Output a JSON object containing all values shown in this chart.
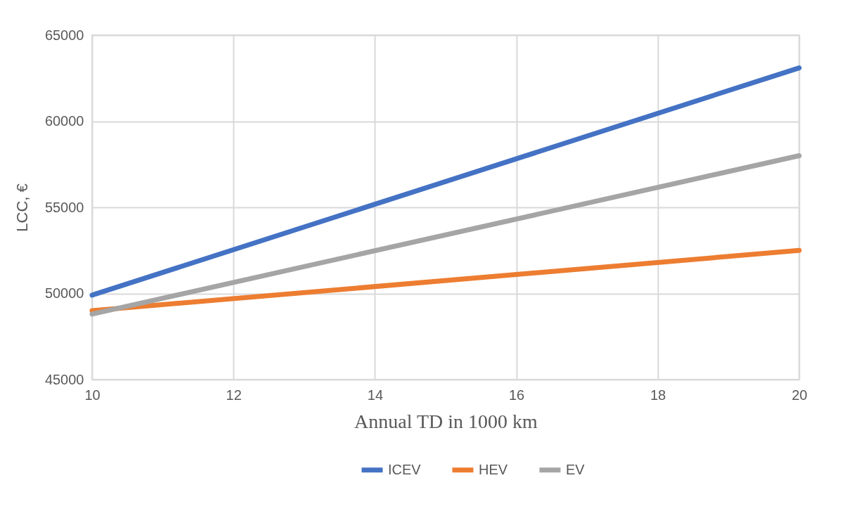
{
  "chart_data": {
    "type": "line",
    "xlabel": "Annual TD in 1000 km",
    "ylabel": "LCC, €",
    "x": [
      10,
      20
    ],
    "series": [
      {
        "name": "ICEV",
        "color": "#4472c4",
        "values": [
          49900,
          63100
        ]
      },
      {
        "name": "HEV",
        "color": "#ed7d31",
        "values": [
          49000,
          52500
        ]
      },
      {
        "name": "EV",
        "color": "#a5a5a5",
        "values": [
          48800,
          58000
        ]
      }
    ],
    "xlim": [
      10,
      20
    ],
    "xticks": [
      10,
      12,
      14,
      16,
      18,
      20
    ],
    "ylim": [
      45000,
      65000
    ],
    "yticks": [
      45000,
      50000,
      55000,
      60000,
      65000
    ],
    "grid": true,
    "legend": "bottom",
    "marker": "none",
    "line_style": "solid"
  }
}
